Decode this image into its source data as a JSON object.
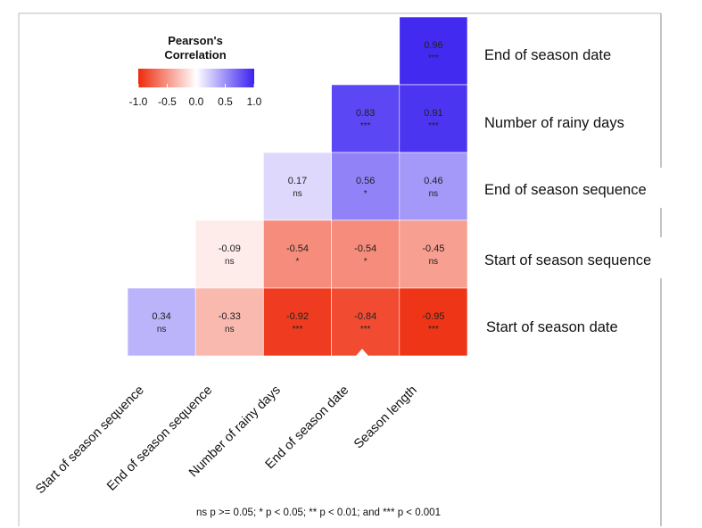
{
  "chart_data": {
    "type": "heatmap",
    "title": "",
    "row_labels": [
      "End of season date",
      "Number of rainy days",
      "End of season sequence",
      "Start of season sequence",
      "Start of season date"
    ],
    "col_labels": [
      "Start of season sequence",
      "End of season sequence",
      "Number of rainy days",
      "End of season date",
      "Season length"
    ],
    "cells": [
      {
        "row": "End of season date",
        "col": "Season length",
        "value": 0.96,
        "label": "0.96",
        "sig": "***"
      },
      {
        "row": "Number of rainy days",
        "col": "End of season date",
        "value": 0.83,
        "label": "0.83",
        "sig": "***"
      },
      {
        "row": "Number of rainy days",
        "col": "Season length",
        "value": 0.91,
        "label": "0.91",
        "sig": "***"
      },
      {
        "row": "End of season sequence",
        "col": "Number of rainy days",
        "value": 0.17,
        "label": "0.17",
        "sig": "ns"
      },
      {
        "row": "End of season sequence",
        "col": "End of season date",
        "value": 0.56,
        "label": "0.56",
        "sig": "*"
      },
      {
        "row": "End of season sequence",
        "col": "Season length",
        "value": 0.46,
        "label": "0.46",
        "sig": "ns"
      },
      {
        "row": "Start of season sequence",
        "col": "End of season sequence",
        "value": -0.09,
        "label": "-0.09",
        "sig": "ns"
      },
      {
        "row": "Start of season sequence",
        "col": "Number of rainy days",
        "value": -0.54,
        "label": "-0.54",
        "sig": "*"
      },
      {
        "row": "Start of season sequence",
        "col": "End of season date",
        "value": -0.54,
        "label": "-0.54",
        "sig": "*"
      },
      {
        "row": "Start of season sequence",
        "col": "Season length",
        "value": -0.45,
        "label": "-0.45",
        "sig": "ns"
      },
      {
        "row": "Start of season date",
        "col": "Start of season sequence",
        "value": 0.34,
        "label": "0.34",
        "sig": "ns"
      },
      {
        "row": "Start of season date",
        "col": "End of season sequence",
        "value": -0.33,
        "label": "-0.33",
        "sig": "ns"
      },
      {
        "row": "Start of season date",
        "col": "Number of rainy days",
        "value": -0.92,
        "label": "-0.92",
        "sig": "***"
      },
      {
        "row": "Start of season date",
        "col": "End of season date",
        "value": -0.84,
        "label": "-0.84",
        "sig": "***"
      },
      {
        "row": "Start of season date",
        "col": "Season length",
        "value": -0.95,
        "label": "-0.95",
        "sig": "***"
      }
    ],
    "legend": {
      "title_line1": "Pearson's",
      "title_line2": "Correlation",
      "range": [
        -1.0,
        1.0
      ],
      "ticks": [
        "-1.0",
        "-0.5",
        "0.0",
        "0.5",
        "1.0"
      ],
      "placement": "top-left"
    },
    "colors": {
      "negative": "#ee2a0b",
      "neutral": "#ffffff",
      "positive": "#3a21f0"
    },
    "footnote": "ns p >= 0.05; * p < 0.05; ** p < 0.01; and *** p < 0.001"
  }
}
